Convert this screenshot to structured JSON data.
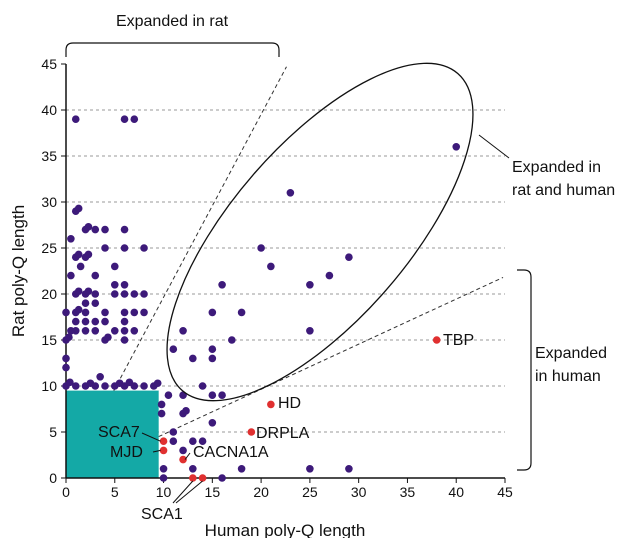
{
  "chart_data": {
    "type": "scatter",
    "xlabel": "Human poly-Q length",
    "ylabel": "Rat poly-Q length",
    "xlim": [
      0,
      45
    ],
    "ylim": [
      0,
      45
    ],
    "xticks": [
      "0",
      "5",
      "10",
      "15",
      "20",
      "25",
      "30",
      "35",
      "40",
      "45"
    ],
    "yticks": [
      "0",
      "5",
      "10",
      "15",
      "20",
      "25",
      "30",
      "35",
      "40",
      "45"
    ],
    "grid": "horizontal-dashed",
    "colors": {
      "points": "#3d1a7a",
      "highlighted": "#e03030",
      "region": "#14a9a6"
    },
    "shaded_region": {
      "x": [
        0,
        9.5
      ],
      "y": [
        0,
        9.5
      ]
    },
    "annotations": {
      "expanded_rat": "Expanded in rat",
      "expanded_both_line1": "Expanded in",
      "expanded_both_line2": "rat and human",
      "expanded_human_line1": "Expanded",
      "expanded_human_line2": "in human"
    },
    "points": [
      {
        "x": 1,
        "y": 39
      },
      {
        "x": 6,
        "y": 39
      },
      {
        "x": 7,
        "y": 39
      },
      {
        "x": 1,
        "y": 29
      },
      {
        "x": 1.3,
        "y": 29.3
      },
      {
        "x": 2,
        "y": 27
      },
      {
        "x": 2.3,
        "y": 27.3
      },
      {
        "x": 3,
        "y": 27
      },
      {
        "x": 4,
        "y": 27
      },
      {
        "x": 6,
        "y": 27
      },
      {
        "x": 0.5,
        "y": 26
      },
      {
        "x": 4,
        "y": 25
      },
      {
        "x": 6,
        "y": 25
      },
      {
        "x": 8,
        "y": 25
      },
      {
        "x": 1,
        "y": 24
      },
      {
        "x": 1.3,
        "y": 24.3
      },
      {
        "x": 2,
        "y": 24
      },
      {
        "x": 2.3,
        "y": 24.3
      },
      {
        "x": 1.5,
        "y": 23
      },
      {
        "x": 3,
        "y": 22
      },
      {
        "x": 5,
        "y": 23
      },
      {
        "x": 0.5,
        "y": 22
      },
      {
        "x": 5,
        "y": 21
      },
      {
        "x": 6,
        "y": 21
      },
      {
        "x": 1,
        "y": 20
      },
      {
        "x": 1.3,
        "y": 20.3
      },
      {
        "x": 2,
        "y": 20
      },
      {
        "x": 2.3,
        "y": 20.3
      },
      {
        "x": 3,
        "y": 20
      },
      {
        "x": 5,
        "y": 20
      },
      {
        "x": 6,
        "y": 20
      },
      {
        "x": 7,
        "y": 20
      },
      {
        "x": 8,
        "y": 20
      },
      {
        "x": 2,
        "y": 19
      },
      {
        "x": 3,
        "y": 19
      },
      {
        "x": 0,
        "y": 18
      },
      {
        "x": 1,
        "y": 18
      },
      {
        "x": 1.3,
        "y": 18.3
      },
      {
        "x": 2,
        "y": 18
      },
      {
        "x": 4,
        "y": 18
      },
      {
        "x": 6,
        "y": 18
      },
      {
        "x": 7,
        "y": 18
      },
      {
        "x": 8,
        "y": 18
      },
      {
        "x": 1,
        "y": 17
      },
      {
        "x": 2,
        "y": 17
      },
      {
        "x": 3,
        "y": 17
      },
      {
        "x": 4,
        "y": 17
      },
      {
        "x": 6,
        "y": 17
      },
      {
        "x": 0.5,
        "y": 16
      },
      {
        "x": 1,
        "y": 16
      },
      {
        "x": 2,
        "y": 16
      },
      {
        "x": 3,
        "y": 16
      },
      {
        "x": 5,
        "y": 16
      },
      {
        "x": 6,
        "y": 16
      },
      {
        "x": 7,
        "y": 16
      },
      {
        "x": 0,
        "y": 15
      },
      {
        "x": 0.3,
        "y": 15.3
      },
      {
        "x": 4,
        "y": 15
      },
      {
        "x": 4.3,
        "y": 15.3
      },
      {
        "x": 6,
        "y": 15
      },
      {
        "x": 0,
        "y": 13
      },
      {
        "x": 0,
        "y": 12
      },
      {
        "x": 0,
        "y": 10
      },
      {
        "x": 0.4,
        "y": 10.4
      },
      {
        "x": 1,
        "y": 10
      },
      {
        "x": 2,
        "y": 10
      },
      {
        "x": 2.5,
        "y": 10.3
      },
      {
        "x": 3,
        "y": 10
      },
      {
        "x": 3.5,
        "y": 11
      },
      {
        "x": 4,
        "y": 10
      },
      {
        "x": 5,
        "y": 10
      },
      {
        "x": 5.5,
        "y": 10.3
      },
      {
        "x": 6,
        "y": 10
      },
      {
        "x": 6.5,
        "y": 10.4
      },
      {
        "x": 7,
        "y": 10
      },
      {
        "x": 8,
        "y": 10
      },
      {
        "x": 9,
        "y": 10
      },
      {
        "x": 9.4,
        "y": 10.3
      },
      {
        "x": 9.8,
        "y": 8
      },
      {
        "x": 9.8,
        "y": 7
      },
      {
        "x": 10.5,
        "y": 9
      },
      {
        "x": 12,
        "y": 9
      },
      {
        "x": 12,
        "y": 7
      },
      {
        "x": 12.3,
        "y": 7.3
      },
      {
        "x": 11,
        "y": 5
      },
      {
        "x": 11,
        "y": 4
      },
      {
        "x": 13,
        "y": 4
      },
      {
        "x": 14,
        "y": 4
      },
      {
        "x": 12,
        "y": 3
      },
      {
        "x": 10,
        "y": 1
      },
      {
        "x": 13,
        "y": 1
      },
      {
        "x": 18,
        "y": 1
      },
      {
        "x": 10,
        "y": 0
      },
      {
        "x": 16,
        "y": 0
      },
      {
        "x": 12,
        "y": 16
      },
      {
        "x": 11,
        "y": 14
      },
      {
        "x": 15,
        "y": 18
      },
      {
        "x": 16,
        "y": 21
      },
      {
        "x": 13,
        "y": 13
      },
      {
        "x": 15,
        "y": 14
      },
      {
        "x": 15,
        "y": 13
      },
      {
        "x": 18,
        "y": 18
      },
      {
        "x": 17,
        "y": 15
      },
      {
        "x": 15,
        "y": 9
      },
      {
        "x": 16,
        "y": 9
      },
      {
        "x": 14,
        "y": 10
      },
      {
        "x": 15,
        "y": 6
      },
      {
        "x": 20,
        "y": 25
      },
      {
        "x": 21,
        "y": 23
      },
      {
        "x": 23,
        "y": 31
      },
      {
        "x": 25,
        "y": 21
      },
      {
        "x": 25,
        "y": 16
      },
      {
        "x": 27,
        "y": 22
      },
      {
        "x": 29,
        "y": 24
      },
      {
        "x": 25,
        "y": 1
      },
      {
        "x": 29,
        "y": 1
      },
      {
        "x": 40,
        "y": 36
      }
    ],
    "highlighted": [
      {
        "name": "TBP",
        "x": 38,
        "y": 15
      },
      {
        "name": "HD",
        "x": 21,
        "y": 8
      },
      {
        "name": "DRPLA",
        "x": 19,
        "y": 5
      },
      {
        "name": "SCA7",
        "x": 10,
        "y": 4
      },
      {
        "name": "MJD",
        "x": 10,
        "y": 3
      },
      {
        "name": "CACNA1A",
        "x": 12,
        "y": 2
      },
      {
        "name": "SCA1",
        "x": 13,
        "y": 0
      },
      {
        "name": "SCA1",
        "x": 14,
        "y": 0
      }
    ],
    "labels": {
      "TBP": "TBP",
      "HD": "HD",
      "DRPLA": "DRPLA",
      "SCA7": "SCA7",
      "MJD": "MJD",
      "CACNA1A": "CACNA1A",
      "SCA1": "SCA1"
    }
  }
}
